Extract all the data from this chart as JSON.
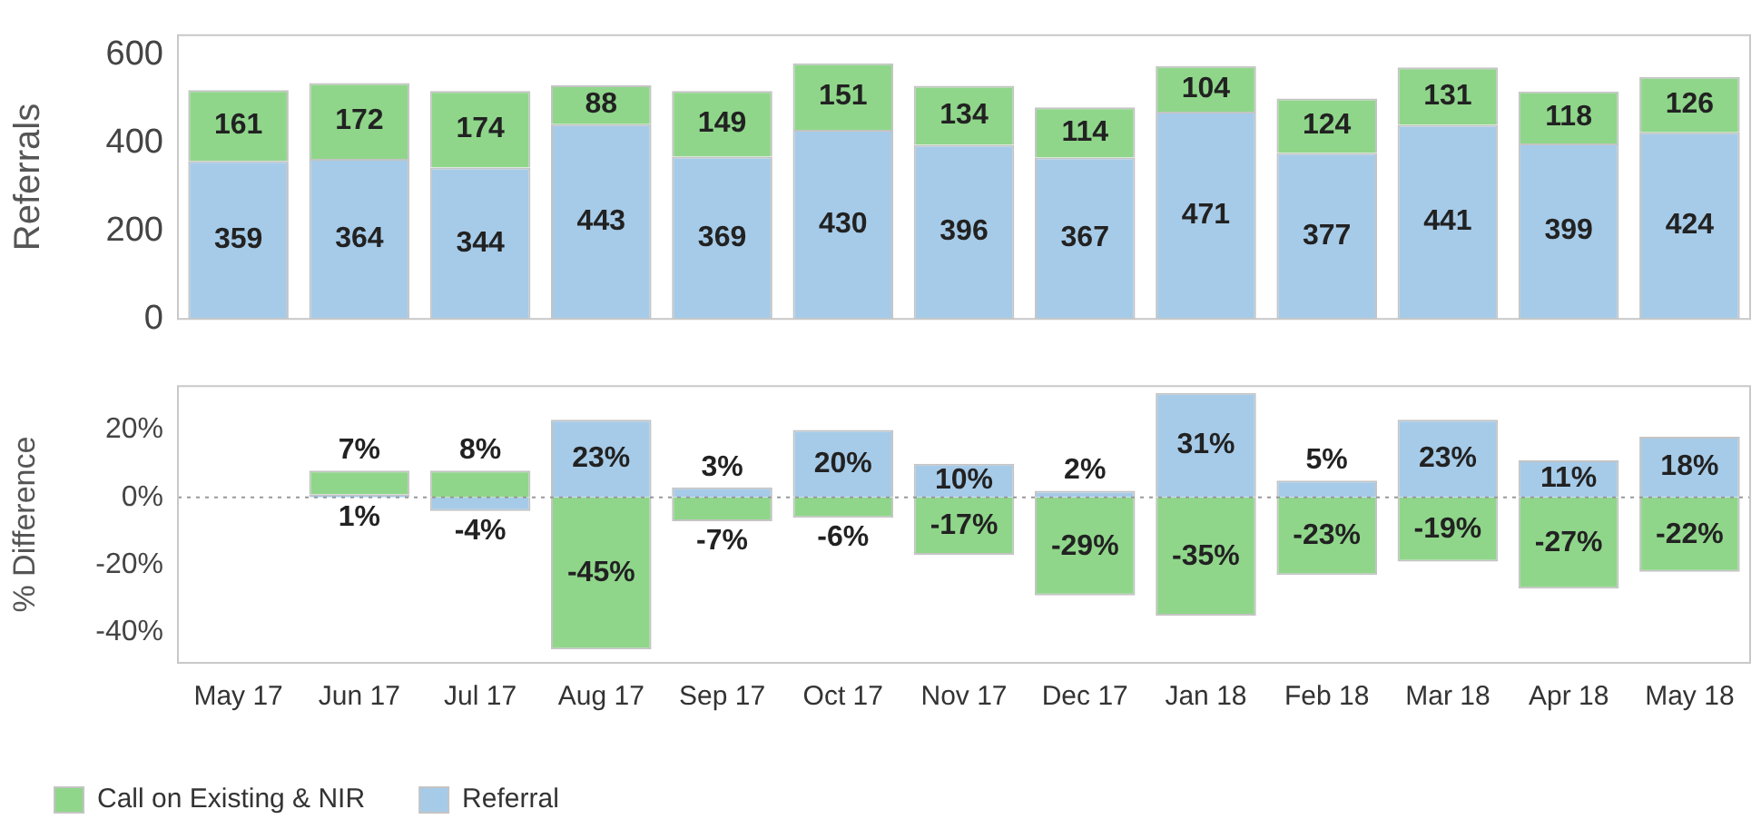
{
  "chart_data": [
    {
      "type": "bar",
      "stacked": true,
      "categories": [
        null,
        null,
        null,
        null,
        null,
        null,
        null,
        null,
        null,
        null,
        null,
        null,
        null
      ],
      "ylabel": "Referrals",
      "ylim": [
        0,
        645
      ],
      "yticks": [
        0,
        200,
        400,
        600
      ],
      "tick_labels": "y",
      "grid": false,
      "legend": false,
      "data_labels": true,
      "series": [
        {
          "color": "#a6cbe8",
          "values": [
            359,
            364,
            344,
            443,
            369,
            430,
            396,
            367,
            471,
            377,
            441,
            399,
            424
          ]
        },
        {
          "color": "#8fd68a",
          "values": [
            161,
            172,
            174,
            88,
            149,
            151,
            134,
            114,
            104,
            124,
            131,
            118,
            126
          ]
        }
      ]
    },
    {
      "type": "bar",
      "stacked": true,
      "categories": [
        "May 17",
        "Jun 17",
        "Jul 17",
        "Aug 17",
        "Sep 17",
        "Oct 17",
        "Nov 17",
        "Dec 17",
        "Jan 18",
        "Feb 18",
        "Mar 18",
        "Apr 18",
        "May 18"
      ],
      "ylabel": "% Difference",
      "ylim": [
        -49,
        33
      ],
      "yticks": [
        {
          "value": -40,
          "label": "-40%"
        },
        {
          "value": -20,
          "label": "-20%"
        },
        {
          "value": 0,
          "label": "0%"
        },
        {
          "value": 20,
          "label": "20%"
        }
      ],
      "grid": false,
      "legend": "bottom",
      "ref_lines": [
        {
          "axis": "y",
          "value": 0,
          "line_style": "dotted",
          "color": "#999999"
        }
      ],
      "series": [
        {
          "name": "Referral",
          "color": "#a6cbe8",
          "values": [
            null,
            1,
            -4,
            23,
            3,
            20,
            10,
            2,
            31,
            5,
            23,
            11,
            18
          ],
          "value_labels": [
            null,
            "1%",
            "-4%",
            "23%",
            "3%",
            "20%",
            "10%",
            "2%",
            "31%",
            "5%",
            "23%",
            "11%",
            "18%"
          ]
        },
        {
          "name": "Call on Existing & NIR",
          "color": "#8fd68a",
          "values": [
            null,
            7,
            8,
            -45,
            -7,
            -6,
            -17,
            -29,
            -35,
            -23,
            -19,
            -27,
            -22
          ],
          "value_labels": [
            null,
            "7%",
            "8%",
            "-45%",
            "-7%",
            "-6%",
            "-17%",
            "-29%",
            "-35%",
            "-23%",
            "-19%",
            "-27%",
            "-22%"
          ]
        }
      ]
    }
  ]
}
